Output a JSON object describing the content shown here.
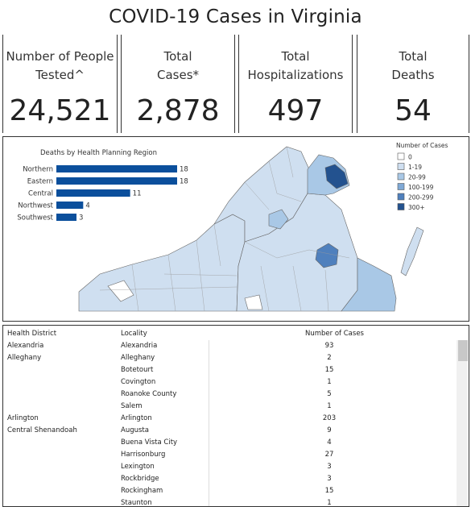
{
  "title": "COVID-19 Cases in Virginia",
  "kpis": [
    {
      "label_line1": "Number of People",
      "label_line2": "Tested^",
      "value": "24,521"
    },
    {
      "label_line1": "Total",
      "label_line2": "Cases*",
      "value": "2,878"
    },
    {
      "label_line1": "Total",
      "label_line2": "Hospitalizations",
      "value": "497"
    },
    {
      "label_line1": "Total",
      "label_line2": "Deaths",
      "value": "54"
    }
  ],
  "chart_data": {
    "type": "bar",
    "title": "Deaths by Health Planning Region",
    "categories": [
      "Northern",
      "Eastern",
      "Central",
      "Northwest",
      "Southwest"
    ],
    "values": [
      18,
      18,
      11,
      4,
      3
    ],
    "bar_color": "#0b4f9c"
  },
  "legend": {
    "title": "Number of Cases",
    "items": [
      {
        "label": "0",
        "color": "#ffffff"
      },
      {
        "label": "1-19",
        "color": "#cfdff0"
      },
      {
        "label": "20-99",
        "color": "#a9c8e6"
      },
      {
        "label": "100-199",
        "color": "#7fa9d6"
      },
      {
        "label": "200-299",
        "color": "#4f80bd"
      },
      {
        "label": "300+",
        "color": "#23528f"
      }
    ]
  },
  "table": {
    "headers": [
      "Health District",
      "Locality",
      "Number of Cases"
    ],
    "rows": [
      {
        "district": "Alexandria",
        "locality": "Alexandria",
        "cases": "93"
      },
      {
        "district": "Alleghany",
        "locality": "Alleghany",
        "cases": "2"
      },
      {
        "district": "",
        "locality": "Botetourt",
        "cases": "15"
      },
      {
        "district": "",
        "locality": "Covington",
        "cases": "1"
      },
      {
        "district": "",
        "locality": "Roanoke County",
        "cases": "5"
      },
      {
        "district": "",
        "locality": "Salem",
        "cases": "1"
      },
      {
        "district": "Arlington",
        "locality": "Arlington",
        "cases": "203"
      },
      {
        "district": "Central Shenandoah",
        "locality": "Augusta",
        "cases": "9"
      },
      {
        "district": "",
        "locality": "Buena Vista City",
        "cases": "4"
      },
      {
        "district": "",
        "locality": "Harrisonburg",
        "cases": "27"
      },
      {
        "district": "",
        "locality": "Lexington",
        "cases": "3"
      },
      {
        "district": "",
        "locality": "Rockbridge",
        "cases": "3"
      },
      {
        "district": "",
        "locality": "Rockingham",
        "cases": "15"
      },
      {
        "district": "",
        "locality": "Staunton",
        "cases": "1"
      }
    ]
  }
}
